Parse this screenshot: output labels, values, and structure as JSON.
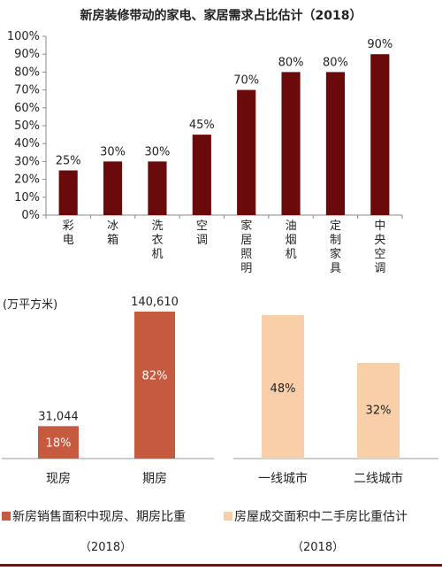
{
  "colors": {
    "top_bar": "#6b0a0a",
    "bottom_left_bar": "#c65a3e",
    "bottom_right_bar": "#f8cfa8"
  },
  "chart_data": [
    {
      "type": "bar",
      "title": "新房装修带动的家电、家居需求占比估计（2018）",
      "categories": [
        "彩电",
        "冰箱",
        "洗衣机",
        "空调",
        "家居照明",
        "油烟机",
        "定制家具",
        "中央空调"
      ],
      "values": [
        25,
        30,
        30,
        45,
        70,
        80,
        80,
        90
      ],
      "value_labels": [
        "25%",
        "30%",
        "30%",
        "45%",
        "70%",
        "80%",
        "80%",
        "90%"
      ],
      "yticks": [
        "0%",
        "10%",
        "20%",
        "30%",
        "40%",
        "50%",
        "60%",
        "70%",
        "80%",
        "90%",
        "100%"
      ],
      "ylim": [
        0,
        100
      ],
      "grid": false
    },
    {
      "type": "bar",
      "ylabel": "(万平方米)",
      "categories": [
        "现房",
        "期房"
      ],
      "values": [
        31044,
        140610
      ],
      "value_labels": [
        "31,044",
        "140,610"
      ],
      "inner_labels": [
        "18%",
        "82%"
      ],
      "legend": "新房销售面积中现房、期房比重",
      "year": "（2018）"
    },
    {
      "type": "bar",
      "categories": [
        "一线城市",
        "二线城市"
      ],
      "values": [
        48,
        32
      ],
      "inner_labels": [
        "48%",
        "32%"
      ],
      "legend": "房屋成交面积中二手房比重估计",
      "year": "（2018）"
    }
  ]
}
